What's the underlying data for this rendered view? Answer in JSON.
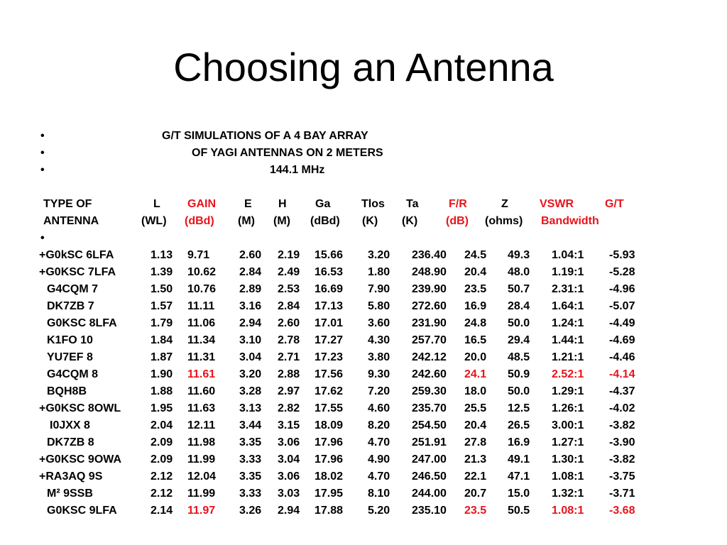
{
  "title": "Choosing an Antenna",
  "bullet_glyph": "•",
  "intro": [
    "G/T SIMULATIONS OF A 4 BAY ARRAY",
    "OF YAGI ANTENNAS ON 2 METERS",
    "144.1 MHz"
  ],
  "header_row1": [
    "TYPE OF",
    "L",
    "GAIN",
    "E",
    "H",
    "Ga",
    "Tlos",
    "Ta",
    "F/R",
    "Z",
    "VSWR",
    "G/T"
  ],
  "header_row2": [
    "ANTENNA",
    "(WL)",
    "(dBd)",
    "(M)",
    "(M)",
    "(dBd)",
    "(K)",
    "(K)",
    "(dB)",
    "(ohms)",
    "Bandwidth"
  ],
  "rows": [
    [
      "+G0kSC 6LFA",
      "1.13",
      "9.71",
      "2.60",
      "2.19",
      "15.66",
      "3.20",
      "236.40",
      "24.5",
      "49.3",
      "1.04:1",
      "-5.93"
    ],
    [
      "+G0KSC 7LFA",
      "1.39",
      "10.62",
      "2.84",
      "2.49",
      "16.53",
      "1.80",
      "248.90",
      "20.4",
      "48.0",
      "1.19:1",
      "-5.28"
    ],
    [
      "G4CQM 7",
      "1.50",
      "10.76",
      "2.89",
      "2.53",
      "16.69",
      "7.90",
      "239.90",
      "23.5",
      "50.7",
      "2.31:1",
      "-4.96"
    ],
    [
      "DK7ZB 7",
      "1.57",
      "11.11",
      "3.16",
      "2.84",
      "17.13",
      "5.80",
      "272.60",
      "16.9",
      "28.4",
      "1.64:1",
      "-5.07"
    ],
    [
      "G0KSC 8LFA",
      "1.79",
      "11.06",
      "2.94",
      "2.60",
      "17.01",
      "3.60",
      "231.90",
      "24.8",
      "50.0",
      "1.24:1",
      "-4.49"
    ],
    [
      "K1FO 10",
      "1.84",
      "11.34",
      "3.10",
      "2.78",
      "17.27",
      "4.30",
      "257.70",
      "16.5",
      "29.4",
      "1.44:1",
      "-4.69"
    ],
    [
      "YU7EF 8",
      "1.87",
      "11.31",
      "3.04",
      "2.71",
      "17.23",
      "3.80",
      "242.12",
      "20.0",
      "48.5",
      "1.21:1",
      "-4.46"
    ],
    [
      "G4CQM 8",
      "1.90",
      "11.61",
      "3.20",
      "2.88",
      "17.56",
      "9.30",
      "242.60",
      "24.1",
      "50.9",
      "2.52:1",
      "-4.14"
    ],
    [
      "BQH8B",
      "1.88",
      "11.60",
      "3.28",
      "2.97",
      "17.62",
      "7.20",
      "259.30",
      "18.0",
      "50.0",
      "1.29:1",
      "-4.37"
    ],
    [
      "+G0KSC 8OWL",
      "1.95",
      "11.63",
      "3.13",
      "2.82",
      "17.55",
      "4.60",
      "235.70",
      "25.5",
      "12.5",
      "1.26:1",
      "-4.02"
    ],
    [
      "I0JXX 8",
      "2.04",
      "12.11",
      "3.44",
      "3.15",
      "18.09",
      "8.20",
      "254.50",
      "20.4",
      "26.5",
      "3.00:1",
      "-3.82"
    ],
    [
      "DK7ZB 8",
      "2.09",
      "11.98",
      "3.35",
      "3.06",
      "17.96",
      "4.70",
      "251.91",
      "27.8",
      "16.9",
      "1.27:1",
      "-3.90"
    ],
    [
      "+G0KSC 9OWA",
      "2.09",
      "11.99",
      "3.33",
      "3.04",
      "17.96",
      "4.90",
      "247.00",
      "21.3",
      "49.1",
      "1.30:1",
      "-3.82"
    ],
    [
      "+RA3AQ 9S",
      "2.12",
      "12.04",
      "3.35",
      "3.06",
      "18.02",
      "4.70",
      "246.50",
      "22.1",
      "47.1",
      "1.08:1",
      "-3.75"
    ],
    [
      "M² 9SSB",
      "2.12",
      "11.99",
      "3.33",
      "3.03",
      "17.95",
      "8.10",
      "244.00",
      "20.7",
      "15.0",
      "1.32:1",
      "-3.71"
    ],
    [
      "G0KSC 9LFA",
      "2.14",
      "11.97",
      "3.26",
      "2.94",
      "17.88",
      "5.20",
      "235.10",
      "23.5",
      "50.5",
      "1.08:1",
      "-3.68"
    ]
  ],
  "highlight_color": "#e8141b"
}
